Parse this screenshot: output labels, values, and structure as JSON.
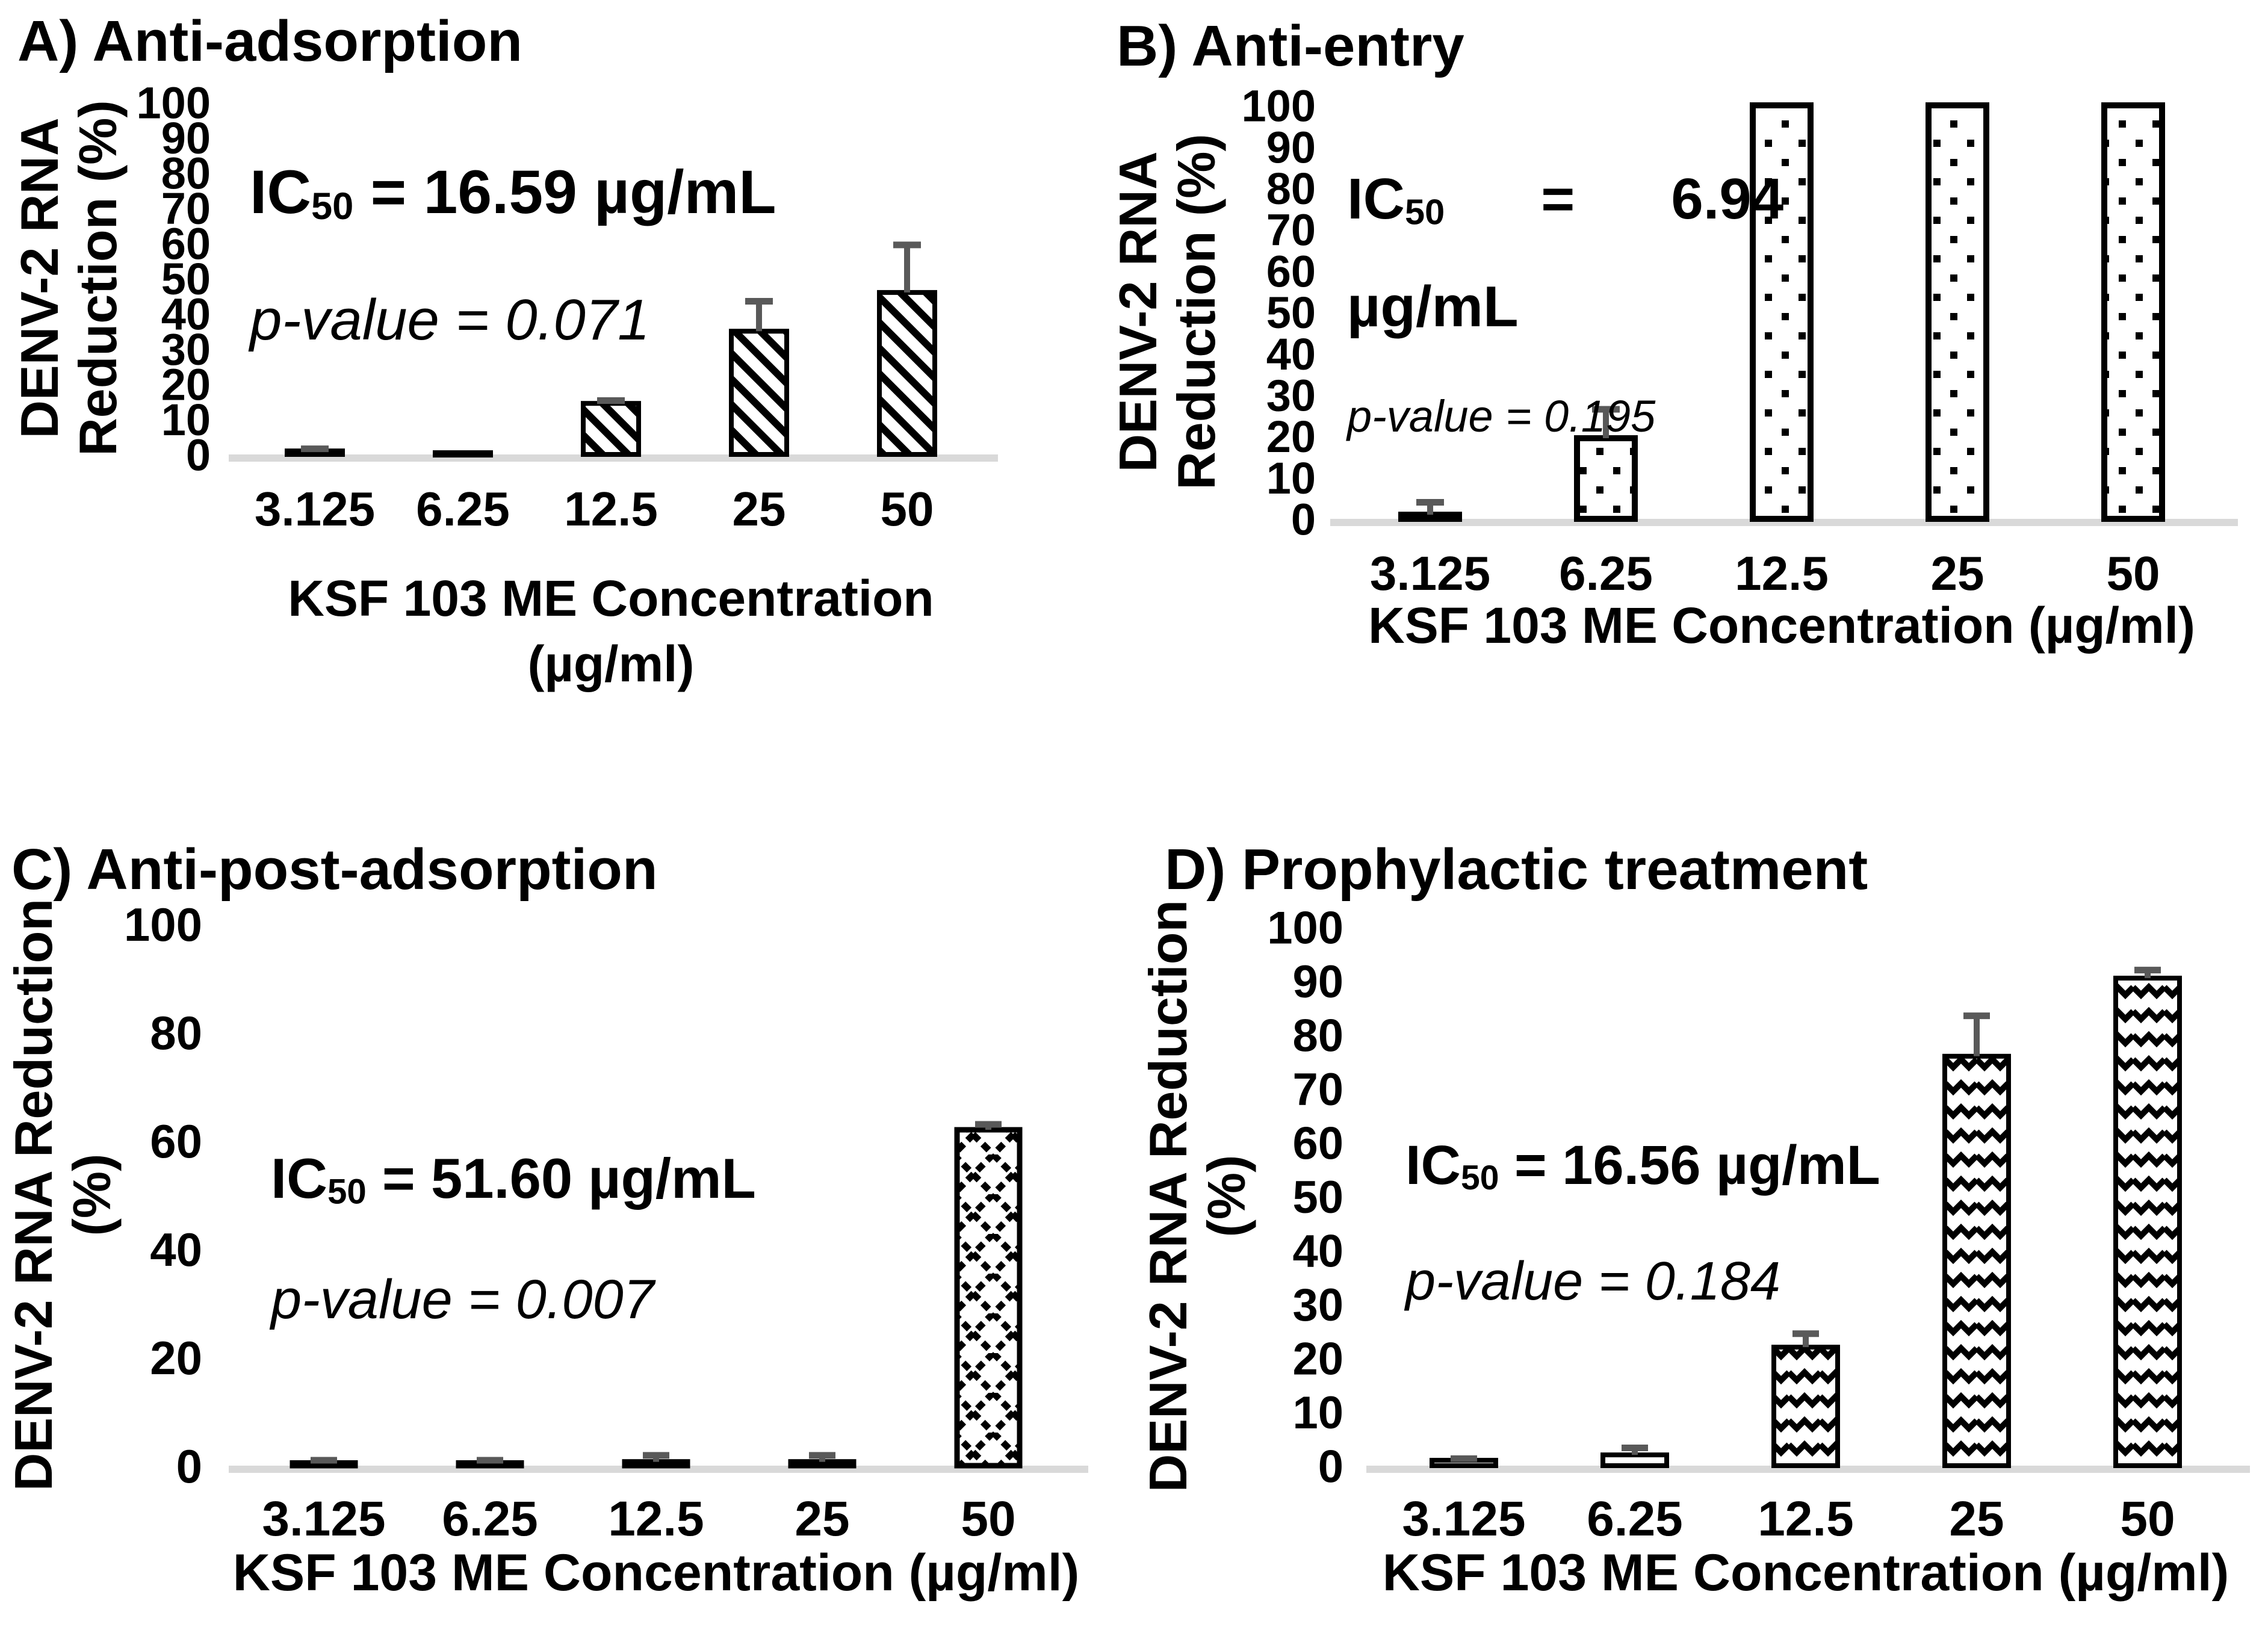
{
  "figure": {
    "background": "#ffffff",
    "text_color": "#000000",
    "error_bar_color": "#595959",
    "baseline_color": "#d9d9d9"
  },
  "panels": [
    {
      "title": "A) Anti-adsorption",
      "y_title_line1": "DENV-2 RNA",
      "y_title_line2": "Reduction (%)",
      "x_title_line1": "KSF 103 ME Concentration",
      "x_title_line2": "(µg/ml)",
      "ic50": {
        "prefix": "IC",
        "sub": "50",
        "rest": " = 16.59 µg/mL"
      },
      "p_value": "p-value = 0.071",
      "chart_data": {
        "type": "bar",
        "title": "A) Anti-adsorption",
        "categories": [
          "3.125",
          "6.25",
          "12.5",
          "25",
          "50"
        ],
        "values": [
          1,
          0.5,
          14.5,
          35,
          46
        ],
        "errors_up": [
          0.6,
          0,
          0.8,
          8.5,
          13.5
        ],
        "yticks": [
          0,
          10,
          20,
          30,
          40,
          50,
          60,
          70,
          80,
          90,
          100
        ],
        "ylim": [
          0,
          100
        ],
        "xlabel": "KSF 103 ME Concentration (µg/ml)",
        "ylabel": "DENV-2 RNA Reduction (%)",
        "bar_pattern": "diagonal-hatch",
        "legend": "none",
        "grid": "off",
        "annotations": [
          "IC50 = 16.59 µg/mL",
          "p-value = 0.071"
        ]
      }
    },
    {
      "title": "B) Anti-entry",
      "y_title_line1": "DENV-2 RNA",
      "y_title_line2": "Reduction (%)",
      "x_title_line1": "KSF 103 ME Concentration (µg/ml)",
      "ic50": {
        "prefix": "IC",
        "sub": "50",
        "rest": "      =      6.94",
        "line2": "µg/mL"
      },
      "p_value": "p-value = 0.195",
      "chart_data": {
        "type": "bar",
        "title": "B) Anti-entry",
        "categories": [
          "3.125",
          "6.25",
          "12.5",
          "25",
          "50"
        ],
        "values": [
          1,
          19.5,
          100,
          100,
          100
        ],
        "errors_up": [
          3,
          7,
          0,
          0,
          0
        ],
        "yticks": [
          0,
          10,
          20,
          30,
          40,
          50,
          60,
          70,
          80,
          90,
          100
        ],
        "ylim": [
          0,
          100
        ],
        "xlabel": "KSF 103 ME Concentration (µg/ml)",
        "ylabel": "DENV-2 RNA Reduction (%)",
        "bar_pattern": "dots",
        "legend": "none",
        "grid": "off",
        "annotations": [
          "IC50 = 6.94 µg/mL",
          "p-value = 0.195"
        ]
      }
    },
    {
      "title": "C) Anti-post-adsorption",
      "y_title_line1": "DENV-2 RNA Reduction",
      "y_title_line2": "(%)",
      "x_title_line1": "KSF 103 ME Concentration (µg/ml)",
      "ic50": {
        "prefix": "IC",
        "sub": "50",
        "rest": " = 51.60 µg/mL"
      },
      "p_value": "p-value = 0.007",
      "chart_data": {
        "type": "bar",
        "title": "C) Anti-post-adsorption",
        "categories": [
          "3.125",
          "6.25",
          "12.5",
          "25",
          "50"
        ],
        "values": [
          0.5,
          0.5,
          0.7,
          0.7,
          62
        ],
        "errors_up": [
          0.5,
          0.5,
          1.2,
          1.2,
          1
        ],
        "yticks": [
          0,
          20,
          40,
          60,
          80,
          100
        ],
        "ylim": [
          0,
          100
        ],
        "xlabel": "KSF 103 ME Concentration (µg/ml)",
        "ylabel": "DENV-2 RNA Reduction (%)",
        "bar_pattern": "diamond-lattice",
        "legend": "none",
        "grid": "off",
        "annotations": [
          "IC50 = 51.60 µg/mL",
          "p-value = 0.007"
        ]
      }
    },
    {
      "title": "D) Prophylactic treatment",
      "y_title_line1": "DENV-2 RNA Reduction",
      "y_title_line2": "(%)",
      "x_title_line1": "KSF 103 ME Concentration (µg/ml)",
      "ic50": {
        "prefix": "IC",
        "sub": "50",
        "rest": " = 16.56 µg/mL"
      },
      "p_value": "p-value = 0.184",
      "chart_data": {
        "type": "bar",
        "title": "D) Prophylactic treatment",
        "categories": [
          "3.125",
          "6.25",
          "12.5",
          "25",
          "50"
        ],
        "values": [
          1,
          2,
          22,
          76,
          90.5
        ],
        "errors_up": [
          0.3,
          1.3,
          2.5,
          7.5,
          1.5
        ],
        "yticks": [
          0,
          10,
          20,
          30,
          40,
          50,
          60,
          70,
          80,
          90,
          100
        ],
        "ylim": [
          0,
          100
        ],
        "xlabel": "KSF 103 ME Concentration (µg/ml)",
        "ylabel": "DENV-2 RNA Reduction (%)",
        "bar_pattern": "wave",
        "legend": "none",
        "grid": "off",
        "annotations": [
          "IC50 = 16.56 µg/mL",
          "p-value = 0.184"
        ]
      }
    }
  ]
}
